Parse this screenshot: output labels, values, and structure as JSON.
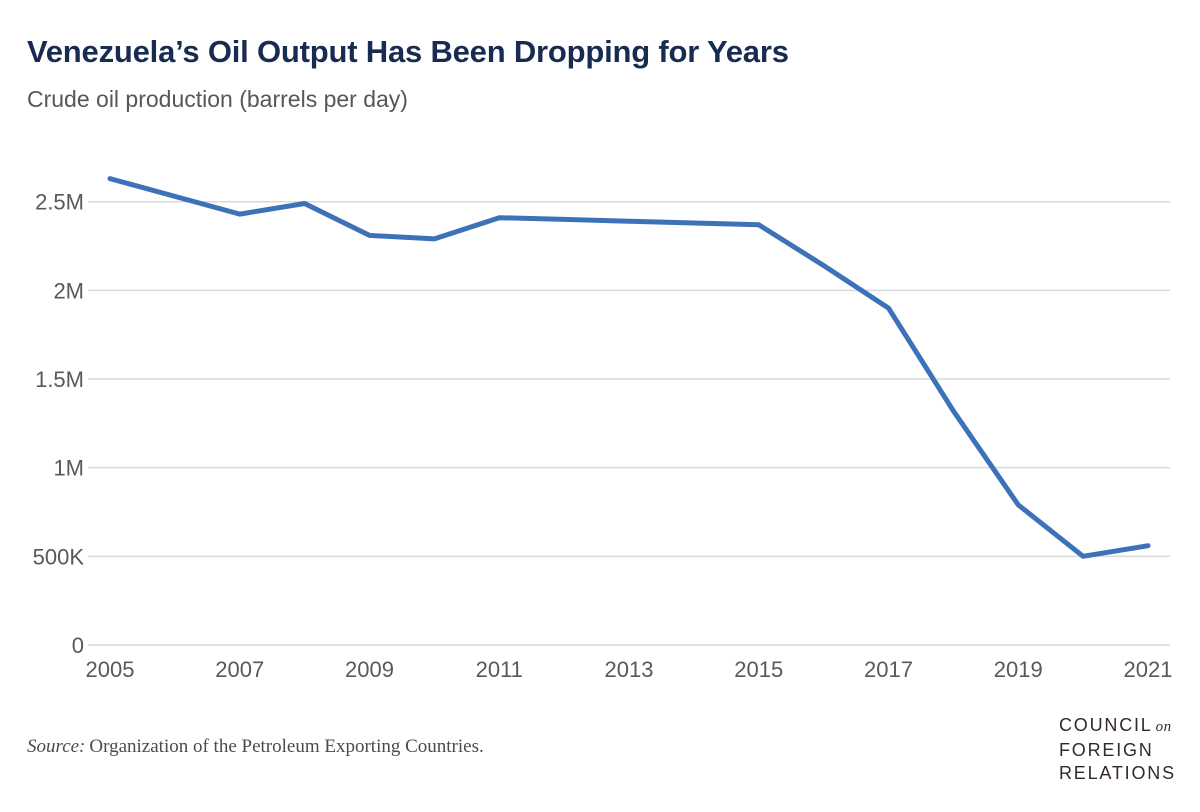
{
  "header": {
    "title": "Venezuela’s Oil Output Has Been Dropping for Years",
    "subtitle": "Crude oil production (barrels per day)"
  },
  "chart_data": {
    "type": "line",
    "title": "Venezuela’s Oil Output Has Been Dropping for Years",
    "subtitle": "Crude oil production (barrels per day)",
    "xlabel": "",
    "ylabel": "Crude oil production (barrels per day)",
    "x": [
      2005,
      2006,
      2007,
      2008,
      2009,
      2010,
      2011,
      2012,
      2013,
      2014,
      2015,
      2016,
      2017,
      2018,
      2019,
      2020,
      2021
    ],
    "values": [
      2630000,
      2530000,
      2430000,
      2490000,
      2310000,
      2290000,
      2410000,
      2400000,
      2390000,
      2380000,
      2370000,
      2140000,
      1900000,
      1320000,
      790000,
      500000,
      560000
    ],
    "xticks": [
      2005,
      2007,
      2009,
      2011,
      2013,
      2015,
      2017,
      2019,
      2021
    ],
    "yticks": [
      {
        "value": 0,
        "label": "0"
      },
      {
        "value": 500000,
        "label": "500K"
      },
      {
        "value": 1000000,
        "label": "1M"
      },
      {
        "value": 1500000,
        "label": "1.5M"
      },
      {
        "value": 2000000,
        "label": "2M"
      },
      {
        "value": 2500000,
        "label": "2.5M"
      }
    ],
    "ylim": [
      0,
      2750000
    ],
    "grid": true,
    "legend": false,
    "line_color": "#3d72b8",
    "grid_color": "#d9d9d9",
    "axis_label_color": "#58595b"
  },
  "footer": {
    "source_label": "Source:",
    "source_text": "Organization of the Petroleum Exporting Countries.",
    "logo": {
      "line1": "COUNCIL",
      "line1_accent": "on",
      "line2": "FOREIGN",
      "line3": "RELATIONS"
    }
  },
  "colors": {
    "title": "#182c52",
    "subtitle": "#55575c",
    "line": "#3d72b8",
    "grid": "#d9d9d9",
    "logo": "#332a26"
  }
}
